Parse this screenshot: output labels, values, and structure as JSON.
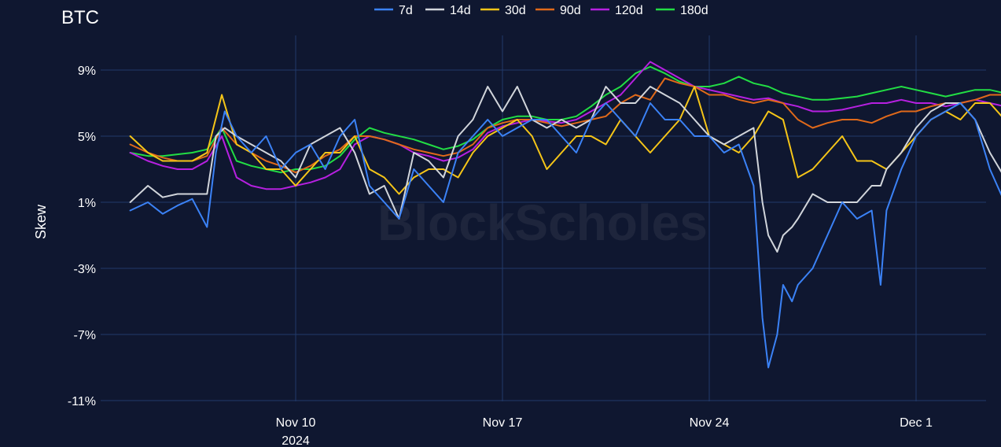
{
  "chart_data": {
    "type": "line",
    "title": "BTC",
    "ylabel": "Skew",
    "xlabel": "",
    "watermark": "BlockScholes",
    "y_ticks": [
      9,
      5,
      1,
      -3,
      -7,
      -11
    ],
    "y_tick_labels": [
      "9%",
      "5%",
      "1%",
      "-3%",
      "-7%",
      "-11%"
    ],
    "ylim": [
      -11,
      12
    ],
    "x_ticks": [
      {
        "day": 10,
        "label": "Nov 10",
        "sub": "2024"
      },
      {
        "day": 17,
        "label": "Nov 17",
        "sub": ""
      },
      {
        "day": 24,
        "label": "Nov 24",
        "sub": ""
      },
      {
        "day": 31,
        "label": "Dec 1",
        "sub": ""
      }
    ],
    "xlim": [
      4.4,
      34.4
    ],
    "legend_position": "top-center",
    "grid": true,
    "colors": {
      "background": "#0f1730",
      "grid": "#223a6a"
    },
    "series": [
      {
        "name": "7d",
        "color": "#3b82f6",
        "x": [
          4.4,
          5,
          5.5,
          6,
          6.5,
          7,
          7.3,
          7.6,
          8,
          8.5,
          9,
          9.5,
          10,
          10.5,
          11,
          11.5,
          12,
          12.5,
          13,
          13.5,
          14,
          14.5,
          15,
          15.5,
          16,
          16.5,
          17,
          17.5,
          18,
          18.5,
          19,
          19.5,
          20,
          20.5,
          21,
          21.5,
          22,
          22.5,
          23,
          23.5,
          24,
          24.5,
          25,
          25.5,
          25.8,
          26,
          26.3,
          26.5,
          26.8,
          27,
          27.5,
          28,
          28.5,
          29,
          29.5,
          29.8,
          30,
          30.5,
          31,
          31.5,
          32,
          32.5,
          33,
          33.5,
          34,
          34.4
        ],
        "y": [
          0.5,
          1,
          0.3,
          0.8,
          1.2,
          -0.5,
          4,
          6.5,
          5,
          4,
          5,
          3,
          4,
          4.5,
          3,
          5,
          6,
          2,
          1,
          0,
          3,
          2,
          1,
          4,
          5,
          6,
          5,
          5.5,
          6,
          6,
          5,
          4,
          6,
          7,
          6,
          5,
          7,
          6,
          6,
          5,
          5,
          4,
          4.5,
          2,
          -6,
          -9,
          -7,
          -4,
          -5,
          -4,
          -3,
          -1,
          1,
          0,
          0.5,
          -4,
          0.5,
          3,
          5,
          6,
          6.5,
          7,
          6,
          3,
          1,
          1
        ]
      },
      {
        "name": "14d",
        "color": "#d1d5db",
        "x": [
          4.4,
          5,
          5.5,
          6,
          6.5,
          7,
          7.3,
          7.6,
          8,
          8.5,
          9,
          9.5,
          10,
          10.5,
          11,
          11.5,
          12,
          12.5,
          13,
          13.5,
          14,
          14.5,
          15,
          15.5,
          16,
          16.5,
          17,
          17.5,
          18,
          18.5,
          19,
          19.5,
          20,
          20.5,
          21,
          21.5,
          22,
          22.5,
          23,
          23.5,
          24,
          24.5,
          25,
          25.5,
          25.8,
          26,
          26.3,
          26.5,
          26.8,
          27,
          27.5,
          28,
          28.5,
          29,
          29.5,
          29.8,
          30,
          30.5,
          31,
          31.5,
          32,
          32.5,
          33,
          33.5,
          34,
          34.4
        ],
        "y": [
          1,
          2,
          1.3,
          1.5,
          1.5,
          1.5,
          5,
          5.5,
          5,
          4.5,
          4,
          3.5,
          2.5,
          4.5,
          5,
          5.5,
          4,
          1.5,
          2,
          0,
          4,
          3.5,
          2.5,
          5,
          6,
          8,
          6.5,
          8,
          6,
          5.5,
          6,
          5.5,
          6,
          8,
          7,
          7,
          8,
          7.5,
          7,
          6,
          5,
          4.5,
          5,
          5.5,
          1,
          -1,
          -2,
          -1,
          -0.5,
          0,
          1.5,
          1,
          1,
          1,
          2,
          2,
          3,
          4,
          5.5,
          6.5,
          7,
          7,
          6,
          4,
          2.5,
          2
        ]
      },
      {
        "name": "30d",
        "color": "#f5c518",
        "x": [
          4.4,
          5,
          5.5,
          6,
          6.5,
          7,
          7.5,
          8,
          8.5,
          9,
          9.5,
          10,
          10.5,
          11,
          11.5,
          12,
          12.5,
          13,
          13.5,
          14,
          14.5,
          15,
          15.5,
          16,
          16.5,
          17,
          17.5,
          18,
          18.5,
          19,
          19.5,
          20,
          20.5,
          21,
          21.5,
          22,
          22.5,
          23,
          23.5,
          24,
          24.5,
          25,
          25.5,
          26,
          26.5,
          27,
          27.5,
          28,
          28.5,
          29,
          29.5,
          30,
          30.5,
          31,
          31.5,
          32,
          32.5,
          33,
          33.5,
          34,
          34.4
        ],
        "y": [
          5,
          4,
          3.5,
          3.5,
          3.5,
          4,
          7.5,
          4.5,
          4,
          3,
          3,
          2,
          3,
          4,
          4,
          5,
          3,
          2.5,
          1.5,
          2.5,
          3,
          3,
          2.5,
          4,
          5,
          5.5,
          6,
          5,
          3,
          4,
          5,
          5,
          4.5,
          6,
          5,
          4,
          5,
          6,
          8,
          5,
          4.5,
          4,
          5,
          6.5,
          6,
          2.5,
          3,
          4,
          5,
          3.5,
          3.5,
          3,
          4,
          5,
          6,
          6.5,
          6,
          7,
          7,
          6,
          5
        ]
      },
      {
        "name": "90d",
        "color": "#e0691a",
        "x": [
          4.4,
          5,
          5.5,
          6,
          6.5,
          7,
          7.5,
          8,
          8.5,
          9,
          9.5,
          10,
          10.5,
          11,
          11.5,
          12,
          12.5,
          13,
          13.5,
          14,
          14.5,
          15,
          15.5,
          16,
          16.5,
          17,
          17.5,
          18,
          18.5,
          19,
          19.5,
          20,
          20.5,
          21,
          21.5,
          22,
          22.5,
          23,
          23.5,
          24,
          24.5,
          25,
          25.5,
          26,
          26.5,
          27,
          27.5,
          28,
          28.5,
          29,
          29.5,
          30,
          30.5,
          31,
          31.5,
          32,
          32.5,
          33,
          33.5,
          34,
          34.4
        ],
        "y": [
          4.5,
          4,
          3.7,
          3.5,
          3.5,
          3.8,
          5.5,
          4.5,
          4,
          3.5,
          3.2,
          2.8,
          3.2,
          3.8,
          4.2,
          5,
          5,
          4.8,
          4.5,
          4.2,
          4,
          3.8,
          4,
          4.5,
          5.5,
          5.8,
          6,
          6,
          5.8,
          5.6,
          5.8,
          6,
          6.2,
          7,
          7.5,
          7.2,
          8.5,
          8.2,
          8,
          7.5,
          7.5,
          7.2,
          7,
          7.2,
          7,
          6,
          5.5,
          5.8,
          6,
          6,
          5.8,
          6.2,
          6.5,
          6.5,
          6.8,
          7,
          7,
          7.2,
          7.5,
          7.5,
          7.3
        ]
      },
      {
        "name": "120d",
        "color": "#b620e0",
        "x": [
          4.4,
          5,
          5.5,
          6,
          6.5,
          7,
          7.5,
          8,
          8.5,
          9,
          9.5,
          10,
          10.5,
          11,
          11.5,
          12,
          12.5,
          13,
          13.5,
          14,
          14.5,
          15,
          15.5,
          16,
          16.5,
          17,
          17.5,
          18,
          18.5,
          19,
          19.5,
          20,
          20.5,
          21,
          21.5,
          22,
          22.5,
          23,
          23.5,
          24,
          24.5,
          25,
          25.5,
          26,
          26.5,
          27,
          27.5,
          28,
          28.5,
          29,
          29.5,
          30,
          30.5,
          31,
          31.5,
          32,
          32.5,
          33,
          33.5,
          34,
          34.4
        ],
        "y": [
          4,
          3.5,
          3.2,
          3,
          3,
          3.5,
          5,
          2.5,
          2,
          1.8,
          1.8,
          2,
          2.2,
          2.5,
          3,
          4.5,
          5,
          4.8,
          4.5,
          4,
          3.8,
          3.5,
          3.7,
          4.2,
          5.2,
          5.6,
          5.8,
          6,
          5.9,
          5.8,
          6,
          6.5,
          7,
          7.5,
          8.5,
          9.5,
          9,
          8.5,
          8,
          7.8,
          7.6,
          7.4,
          7.2,
          7.3,
          7,
          6.8,
          6.5,
          6.5,
          6.6,
          6.8,
          7,
          7,
          7.2,
          7,
          7,
          6.8,
          7,
          7.2,
          7,
          6.8,
          6.8
        ]
      },
      {
        "name": "180d",
        "color": "#22dd44",
        "x": [
          4.4,
          5,
          5.5,
          6,
          6.5,
          7,
          7.5,
          8,
          8.5,
          9,
          9.5,
          10,
          10.5,
          11,
          11.5,
          12,
          12.5,
          13,
          13.5,
          14,
          14.5,
          15,
          15.5,
          16,
          16.5,
          17,
          17.5,
          18,
          18.5,
          19,
          19.5,
          20,
          20.5,
          21,
          21.5,
          22,
          22.5,
          23,
          23.5,
          24,
          24.5,
          25,
          25.5,
          26,
          26.5,
          27,
          27.5,
          28,
          28.5,
          29,
          29.5,
          30,
          30.5,
          31,
          31.5,
          32,
          32.5,
          33,
          33.5,
          34,
          34.4
        ],
        "y": [
          4,
          3.8,
          3.8,
          3.9,
          4,
          4.2,
          5.5,
          3.5,
          3.2,
          3,
          2.8,
          3,
          3,
          3.2,
          3.8,
          4.8,
          5.5,
          5.2,
          5,
          4.8,
          4.5,
          4.2,
          4.4,
          4.8,
          5.5,
          6,
          6.2,
          6.2,
          6,
          6,
          6.2,
          6.8,
          7.5,
          8,
          8.8,
          9.2,
          8.8,
          8.3,
          8,
          8,
          8.2,
          8.6,
          8.2,
          8,
          7.6,
          7.4,
          7.2,
          7.2,
          7.3,
          7.4,
          7.6,
          7.8,
          8,
          7.8,
          7.6,
          7.4,
          7.6,
          7.8,
          7.8,
          7.6,
          7.4
        ]
      }
    ]
  }
}
